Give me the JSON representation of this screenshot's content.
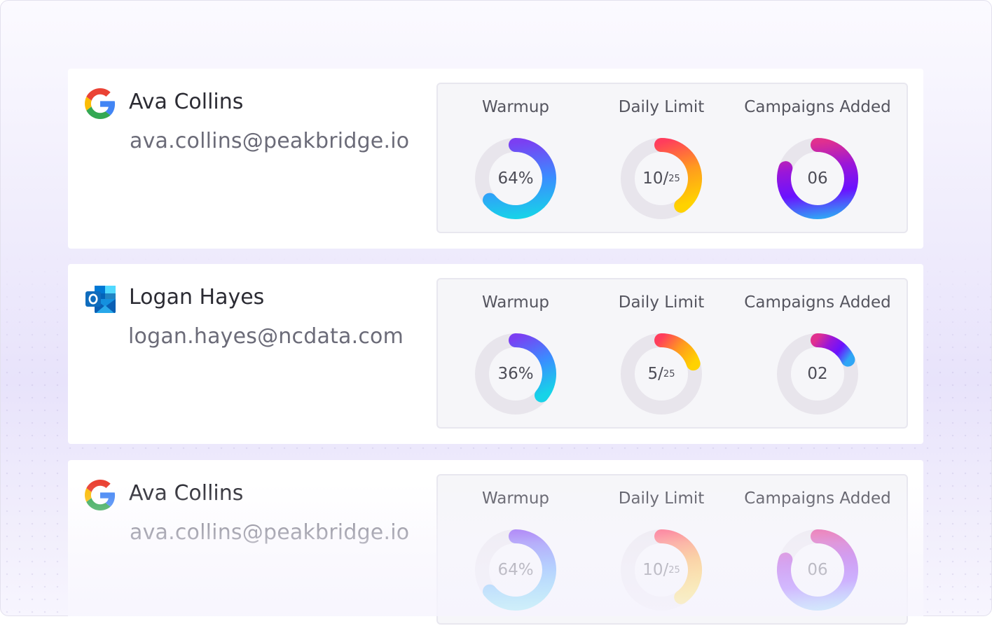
{
  "accounts": [
    {
      "provider": "google",
      "provider_icon": "google-icon",
      "name": "Ava Collins",
      "email": "ava.collins@peakbridge.io",
      "warmup": {
        "label": "Warmup",
        "value": "64%",
        "fraction": 0.64
      },
      "daily_limit": {
        "label": "Daily Limit",
        "used": "10",
        "separator": "/",
        "total": "25",
        "fraction": 0.4
      },
      "campaigns": {
        "label": "Campaigns Added",
        "value": "06",
        "fraction": 0.8
      }
    },
    {
      "provider": "outlook",
      "provider_icon": "outlook-icon",
      "name": "Logan Hayes",
      "email": "logan.hayes@ncdata.com",
      "warmup": {
        "label": "Warmup",
        "value": "36%",
        "fraction": 0.36
      },
      "daily_limit": {
        "label": "Daily Limit",
        "used": "5",
        "separator": "/",
        "total": "25",
        "fraction": 0.2
      },
      "campaigns": {
        "label": "Campaigns Added",
        "value": "02",
        "fraction": 0.18
      }
    },
    {
      "provider": "google",
      "provider_icon": "google-icon",
      "name": "Ava Collins",
      "email": "ava.collins@peakbridge.io",
      "warmup": {
        "label": "Warmup",
        "value": "64%",
        "fraction": 0.64
      },
      "daily_limit": {
        "label": "Daily Limit",
        "used": "10",
        "separator": "/",
        "total": "25",
        "fraction": 0.4
      },
      "campaigns": {
        "label": "Campaigns Added",
        "value": "06",
        "fraction": 0.8
      }
    }
  ],
  "colors": {
    "track": "#e8e5ec",
    "warmup_gradient": [
      "#7b3ff2",
      "#3b8cff",
      "#17d3e8"
    ],
    "daily_gradient": [
      "#ff3d5c",
      "#ff9a1f",
      "#ffd200"
    ],
    "campaigns_gradient": [
      "#e0308f",
      "#9b17d8",
      "#6a12ff",
      "#2fa6f5"
    ]
  }
}
